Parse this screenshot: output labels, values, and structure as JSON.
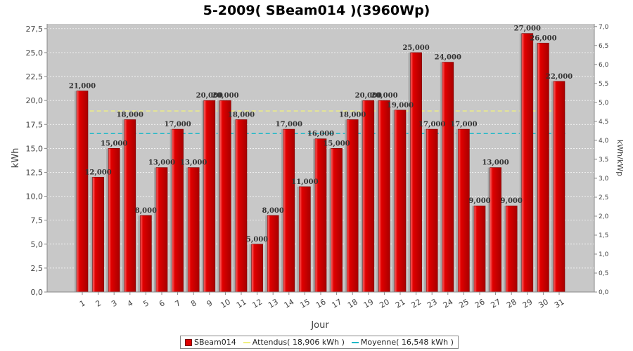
{
  "chart_data": {
    "type": "bar",
    "title": "5-2009( SBeam014 )(3960Wp)",
    "xlabel": "Jour",
    "ylabel": "kWh",
    "ylabel_right": "kWh/kWp",
    "ylim": [
      0,
      28
    ],
    "yticks": [
      "0,0",
      "2,5",
      "5,0",
      "7,5",
      "10,0",
      "12,5",
      "15,0",
      "17,5",
      "20,0",
      "22,5",
      "25,0",
      "27,5"
    ],
    "ylim_right": [
      0,
      7.07
    ],
    "yticks_right": [
      "0,0",
      "0,5",
      "1,0",
      "1,5",
      "2,0",
      "2,5",
      "3,0",
      "3,5",
      "4,0",
      "4,5",
      "5,0",
      "5,5",
      "6,0",
      "6,5",
      "7,0"
    ],
    "grid": true,
    "legend_position": "bottom",
    "categories": [
      "1",
      "2",
      "3",
      "4",
      "5",
      "6",
      "7",
      "8",
      "9",
      "10",
      "11",
      "12",
      "13",
      "14",
      "15",
      "16",
      "17",
      "18",
      "19",
      "20",
      "21",
      "22",
      "23",
      "24",
      "25",
      "26",
      "27",
      "28",
      "29",
      "30",
      "31"
    ],
    "series": [
      {
        "name": "SBeam014",
        "color": "#e00000",
        "values": [
          21,
          12,
          15,
          18,
          8,
          13,
          17,
          13,
          20,
          20,
          18,
          5,
          8,
          17,
          11,
          16,
          15,
          18,
          20,
          20,
          19,
          25,
          17,
          24,
          17,
          9,
          13,
          9,
          27,
          26,
          22
        ],
        "value_labels": [
          "21,000",
          "12,000",
          "15,000",
          "18,000",
          "8,000",
          "13,000",
          "17,000",
          "13,000",
          "20,000",
          "20,000",
          "18,000",
          "5,000",
          "8,000",
          "17,000",
          "11,000",
          "16,000",
          "15,000",
          "18,000",
          "20,000",
          "20,000",
          "19,000",
          "25,000",
          "17,000",
          "24,000",
          "17,000",
          "9,000",
          "13,000",
          "9,000",
          "27,000",
          "26,000",
          "22,000"
        ]
      }
    ],
    "reference_lines": [
      {
        "name": "Attendus( 18,906 kWh )",
        "value": 18.906,
        "color": "#f0f080"
      },
      {
        "name": "Moyenne( 16,548 kWh )",
        "value": 16.548,
        "color": "#20b8c8"
      }
    ]
  }
}
